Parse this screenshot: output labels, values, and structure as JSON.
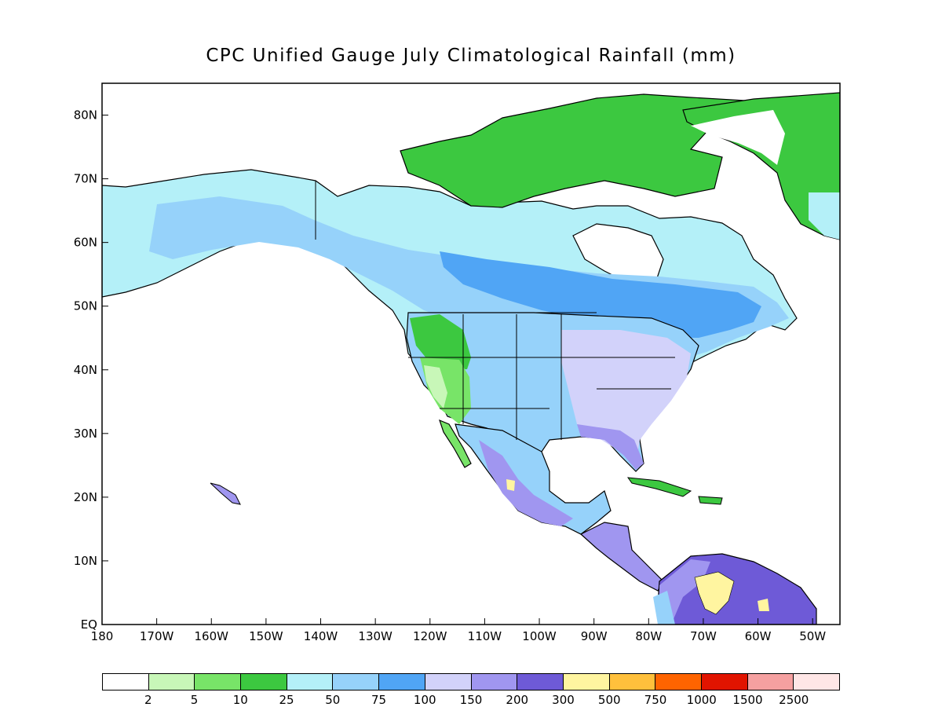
{
  "title": "CPC Unified Gauge July Climatological Rainfall (mm)",
  "map": {
    "region": "North America",
    "projection": "cylindrical equidistant",
    "lon_range": [
      180,
      -45
    ],
    "lat_range": [
      0,
      85
    ],
    "ocean_color": "#ffffff",
    "border_color": "#000000"
  },
  "axes": {
    "y_ticks": [
      {
        "value": 80,
        "label": "80N"
      },
      {
        "value": 70,
        "label": "70N"
      },
      {
        "value": 60,
        "label": "60N"
      },
      {
        "value": 50,
        "label": "50N"
      },
      {
        "value": 40,
        "label": "40N"
      },
      {
        "value": 30,
        "label": "30N"
      },
      {
        "value": 20,
        "label": "20N"
      },
      {
        "value": 10,
        "label": "10N"
      },
      {
        "value": 0,
        "label": "EQ"
      }
    ],
    "x_ticks": [
      {
        "value": 180,
        "label": "180"
      },
      {
        "value": -170,
        "label": "170W"
      },
      {
        "value": -160,
        "label": "160W"
      },
      {
        "value": -150,
        "label": "150W"
      },
      {
        "value": -140,
        "label": "140W"
      },
      {
        "value": -130,
        "label": "130W"
      },
      {
        "value": -120,
        "label": "120W"
      },
      {
        "value": -110,
        "label": "110W"
      },
      {
        "value": -100,
        "label": "100W"
      },
      {
        "value": -90,
        "label": "90W"
      },
      {
        "value": -80,
        "label": "80W"
      },
      {
        "value": -70,
        "label": "70W"
      },
      {
        "value": -60,
        "label": "60W"
      },
      {
        "value": -50,
        "label": "50W"
      }
    ]
  },
  "legend": {
    "colors": [
      "#ffffff",
      "#c8f7b8",
      "#78e468",
      "#3cc840",
      "#b4f0f8",
      "#96d2fa",
      "#50a5f5",
      "#d2d2fa",
      "#a096f0",
      "#6e5ad7",
      "#fff5a0",
      "#ffc03c",
      "#ff6400",
      "#e11400",
      "#f5a0a0",
      "#ffe6e6"
    ],
    "labels": [
      "2",
      "5",
      "10",
      "25",
      "50",
      "75",
      "100",
      "150",
      "200",
      "300",
      "500",
      "750",
      "1000",
      "1500",
      "2500"
    ]
  }
}
